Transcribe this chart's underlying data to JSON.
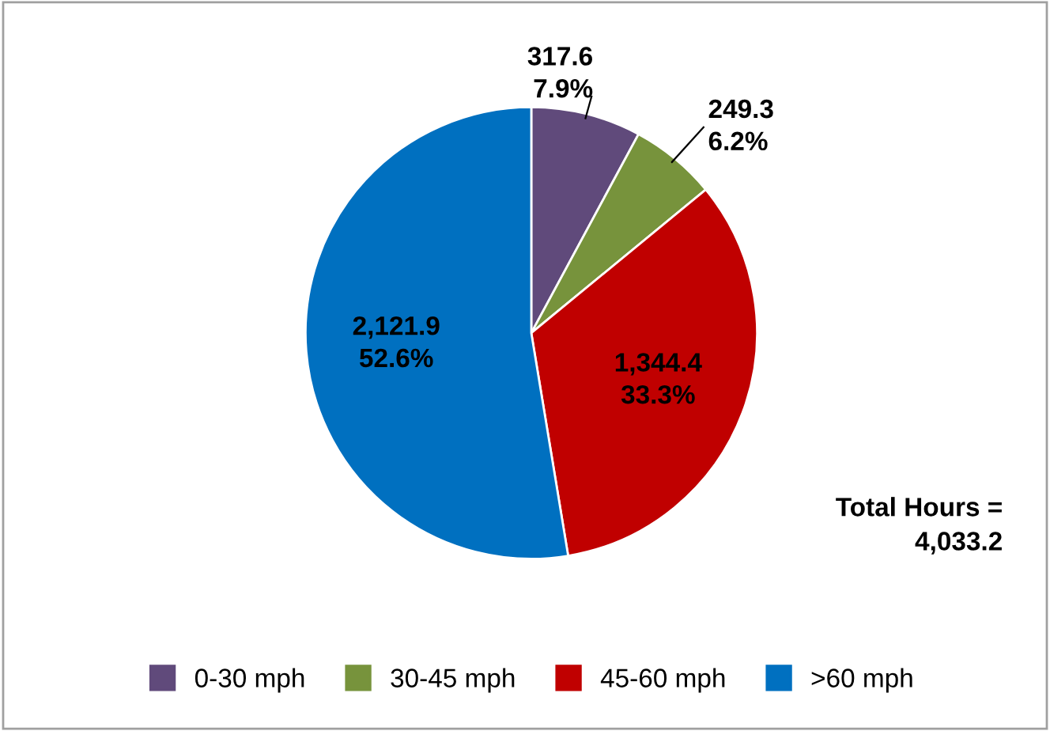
{
  "chart_data": {
    "type": "pie",
    "categories": [
      "0-30 mph",
      "30-45 mph",
      "45-60 mph",
      ">60 mph"
    ],
    "values": [
      317.6,
      249.3,
      1344.4,
      2121.9
    ],
    "colors": [
      "#604a7b",
      "#77933c",
      "#c00000",
      "#0070c0"
    ],
    "value_labels": [
      "317.6\n7.9%",
      "249.3\n6.2%",
      "1,344.4\n33.3%",
      "2,121.9\n52.6%"
    ],
    "annotations": [
      "Total Hours =\n4,033.2"
    ],
    "legend": "bottom"
  }
}
